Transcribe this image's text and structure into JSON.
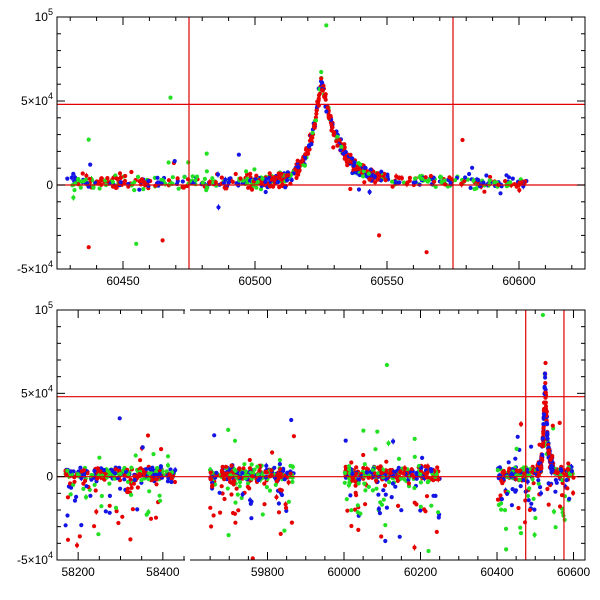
{
  "chart_data": [
    {
      "type": "scatter",
      "title": "",
      "xlabel": "",
      "ylabel": "",
      "xlim": [
        60425,
        60625
      ],
      "ylim": [
        -50000,
        100000
      ],
      "x_ticks": [
        {
          "value": 60450,
          "label": "60450"
        },
        {
          "value": 60500,
          "label": "60500"
        },
        {
          "value": 60550,
          "label": "60550"
        },
        {
          "value": 60600,
          "label": "60600"
        }
      ],
      "y_ticks": [
        {
          "value": 100000,
          "base": "10",
          "exp": "5"
        },
        {
          "value": 50000,
          "base": "5×10",
          "exp": "4"
        },
        {
          "value": 0,
          "base": "0",
          "exp": ""
        },
        {
          "value": -50000,
          "base": "-5×10",
          "exp": "4"
        }
      ],
      "reference_lines": {
        "vertical": [
          60475,
          60575
        ],
        "horizontal": [
          0,
          48000
        ]
      },
      "series_colors": {
        "green": "#22e022",
        "blue": "#1414e6",
        "red": "#e60000"
      },
      "peak": {
        "x": 60525,
        "y": 60000
      },
      "notable_points": [
        {
          "x": 60527,
          "y": 95000,
          "color": "green"
        },
        {
          "x": 60468,
          "y": 52000,
          "color": "green"
        },
        {
          "x": 60437,
          "y": 27000,
          "color": "green"
        },
        {
          "x": 60437,
          "y": -37000,
          "color": "red"
        },
        {
          "x": 60465,
          "y": -33000,
          "color": "red"
        },
        {
          "x": 60565,
          "y": -40000,
          "color": "red"
        },
        {
          "x": 60547,
          "y": -30000,
          "color": "red"
        },
        {
          "x": 60455,
          "y": -35000,
          "color": "green"
        }
      ]
    },
    {
      "type": "scatter",
      "title": "",
      "xlabel": "",
      "ylabel": "",
      "broken_x_axis": true,
      "ylim": [
        -50000,
        100000
      ],
      "segments": [
        {
          "xlim": [
            58150,
            58450
          ],
          "ticks": [
            58200,
            58400
          ],
          "data_range": [
            58170,
            58430
          ]
        },
        {
          "xlim": [
            59600,
            60630
          ],
          "ticks": [
            59800,
            60000,
            60200,
            60400,
            60600
          ],
          "data_ranges": [
            [
              59650,
              59870
            ],
            [
              60000,
              60250
            ],
            [
              60400,
              60600
            ]
          ]
        }
      ],
      "x_tick_labels": [
        "58200",
        "58400",
        "59800",
        "60000",
        "60200",
        "60400",
        "60600"
      ],
      "y_ticks": [
        {
          "value": 100000,
          "base": "10",
          "exp": "5"
        },
        {
          "value": 50000,
          "base": "5×10",
          "exp": "4"
        },
        {
          "value": 0,
          "base": "0",
          "exp": ""
        },
        {
          "value": -50000,
          "base": "-5×10",
          "exp": "4"
        }
      ],
      "reference_lines": {
        "vertical": [
          60475,
          60575
        ],
        "horizontal": [
          0,
          48000
        ]
      },
      "series_colors": {
        "green": "#22e022",
        "blue": "#1414e6",
        "red": "#e60000"
      },
      "peak": {
        "x": 60525,
        "y": 60000
      },
      "notable_points": [
        {
          "x": 60112,
          "y": 67000,
          "color": "green"
        },
        {
          "x": 60520,
          "y": 97000,
          "color": "green"
        },
        {
          "x": 59862,
          "y": 34000,
          "color": "blue"
        },
        {
          "x": 58298,
          "y": 35000,
          "color": "blue"
        },
        {
          "x": 60489,
          "y": 18000,
          "color": "blue"
        }
      ]
    }
  ]
}
